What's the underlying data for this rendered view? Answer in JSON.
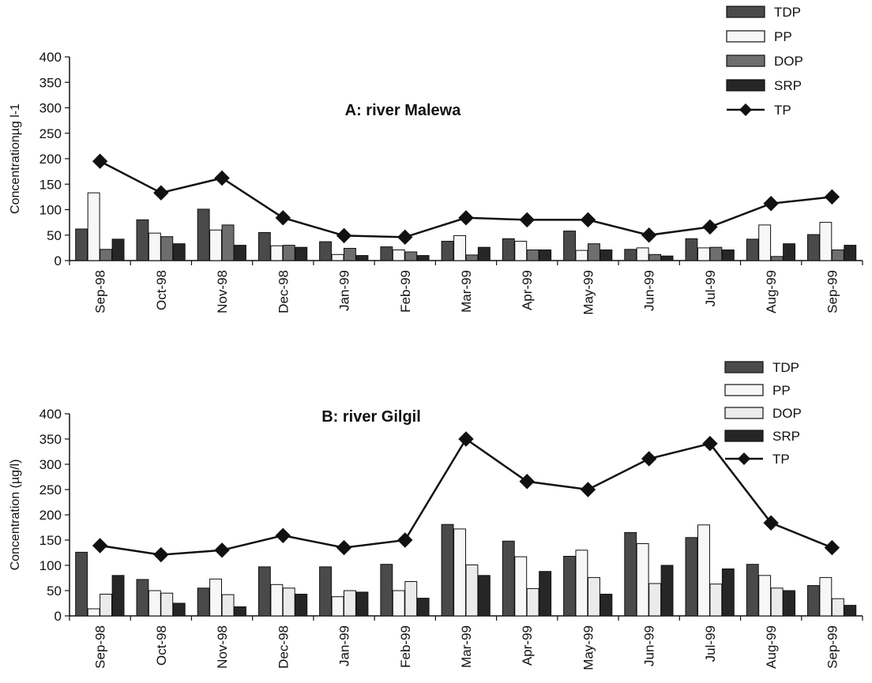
{
  "chart_data": [
    {
      "type": "bar",
      "title": "A: river Malewa",
      "ylabel": "Concentrationµg l-1",
      "xlabel": "",
      "ylim": [
        0,
        400
      ],
      "yticks": [
        0,
        50,
        100,
        150,
        200,
        250,
        300,
        350,
        400
      ],
      "grid": false,
      "legend_position": "top-right",
      "categories": [
        "Sep-98",
        "Oct-98",
        "Nov-98",
        "Dec-98",
        "Jan-99",
        "Feb-99",
        "Mar-99",
        "Apr-99",
        "May-99",
        "Jun-99",
        "Jul-99",
        "Aug-99",
        "Sep-99"
      ],
      "series": [
        {
          "name": "TDP",
          "kind": "bar",
          "color": "#4a4a4a",
          "values": [
            62,
            80,
            101,
            55,
            37,
            27,
            38,
            43,
            58,
            22,
            43,
            42,
            51
          ]
        },
        {
          "name": "PP",
          "kind": "bar",
          "color": "#f7f7f7",
          "values": [
            133,
            54,
            60,
            29,
            12,
            21,
            49,
            38,
            20,
            25,
            25,
            70,
            75
          ]
        },
        {
          "name": "DOP",
          "kind": "bar",
          "color": "#6e6e6e",
          "values": [
            22,
            47,
            70,
            30,
            24,
            17,
            11,
            21,
            33,
            12,
            26,
            8,
            21
          ]
        },
        {
          "name": "SRP",
          "kind": "bar",
          "color": "#262626",
          "values": [
            42,
            33,
            30,
            26,
            10,
            10,
            26,
            21,
            21,
            9,
            21,
            33,
            30
          ]
        },
        {
          "name": "TP",
          "kind": "line",
          "color": "#111111",
          "values": [
            195,
            133,
            162,
            84,
            49,
            46,
            84,
            80,
            80,
            50,
            66,
            112,
            125
          ]
        }
      ]
    },
    {
      "type": "bar",
      "title": "B: river Gilgil",
      "ylabel": "Concentration (µg/l)",
      "xlabel": "",
      "ylim": [
        0,
        400
      ],
      "yticks": [
        0,
        50,
        100,
        150,
        200,
        250,
        300,
        350,
        400
      ],
      "grid": false,
      "legend_position": "top-right",
      "categories": [
        "Sep-98",
        "Oct-98",
        "Nov-98",
        "Dec-98",
        "Jan-99",
        "Feb-99",
        "Mar-99",
        "Apr-99",
        "May-99",
        "Jun-99",
        "Jul-99",
        "Aug-99",
        "Sep-99"
      ],
      "series": [
        {
          "name": "TDP",
          "kind": "bar",
          "color": "#4a4a4a",
          "values": [
            126,
            72,
            55,
            97,
            97,
            102,
            181,
            148,
            118,
            165,
            155,
            102,
            60
          ]
        },
        {
          "name": "PP",
          "kind": "bar",
          "color": "#f7f7f7",
          "values": [
            14,
            50,
            73,
            62,
            38,
            50,
            172,
            117,
            130,
            143,
            180,
            80,
            76
          ]
        },
        {
          "name": "DOP",
          "kind": "bar",
          "color": "#ebebeb",
          "values": [
            43,
            45,
            42,
            55,
            50,
            68,
            101,
            54,
            76,
            64,
            63,
            55,
            34
          ]
        },
        {
          "name": "SRP",
          "kind": "bar",
          "color": "#262626",
          "values": [
            80,
            25,
            18,
            43,
            47,
            35,
            80,
            88,
            43,
            100,
            93,
            50,
            21
          ]
        },
        {
          "name": "TP",
          "kind": "line",
          "color": "#111111",
          "values": [
            139,
            121,
            130,
            159,
            135,
            150,
            350,
            266,
            250,
            311,
            341,
            184,
            135
          ]
        }
      ]
    }
  ]
}
